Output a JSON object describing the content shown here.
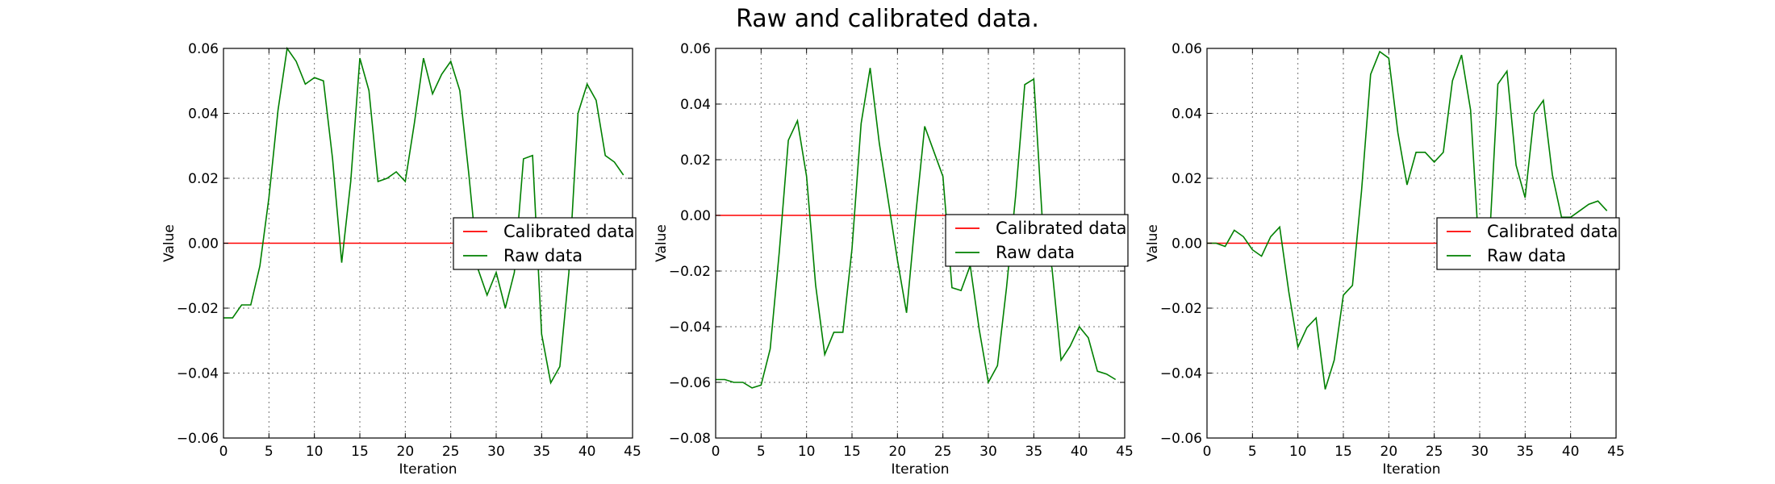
{
  "title": "Raw and calibrated data.",
  "colors": {
    "calibrated": "#ff0000",
    "raw": "#008000",
    "grid": "#000000"
  },
  "chart_data": [
    {
      "type": "line",
      "xlabel": "Iteration",
      "ylabel": "Value",
      "xlim": [
        0,
        45
      ],
      "ylim": [
        -0.06,
        0.06
      ],
      "xticks": [
        0,
        5,
        10,
        15,
        20,
        25,
        30,
        35,
        40,
        45
      ],
      "xtick_labels": [
        "0",
        "5",
        "10",
        "15",
        "20",
        "25",
        "30",
        "35",
        "40",
        "45"
      ],
      "yticks": [
        -0.06,
        -0.04,
        -0.02,
        0.0,
        0.02,
        0.04,
        0.06
      ],
      "ytick_labels": [
        "−0.06",
        "−0.04",
        "−0.02",
        "0.00",
        "0.02",
        "0.04",
        "0.06"
      ],
      "grid": true,
      "legend_position": "right",
      "x": [
        0,
        1,
        2,
        3,
        4,
        5,
        6,
        7,
        8,
        9,
        10,
        11,
        12,
        13,
        14,
        15,
        16,
        17,
        18,
        19,
        20,
        21,
        22,
        23,
        24,
        25,
        26,
        27,
        28,
        29,
        30,
        31,
        32,
        33,
        34,
        35,
        36,
        37,
        38,
        39,
        40,
        41,
        42,
        43,
        44
      ],
      "series": [
        {
          "name": "Calibrated data",
          "color": "#ff0000",
          "values": [
            0,
            0,
            0,
            0,
            0,
            0,
            0,
            0,
            0,
            0,
            0,
            0,
            0,
            0,
            0,
            0,
            0,
            0,
            0,
            0,
            0,
            0,
            0,
            0,
            0,
            0,
            0,
            0,
            0,
            0,
            0,
            0,
            0,
            0,
            0,
            0,
            0,
            0,
            0,
            0,
            0,
            0,
            0,
            0,
            0
          ]
        },
        {
          "name": "Raw data",
          "color": "#008000",
          "values": [
            -0.023,
            -0.023,
            -0.019,
            -0.019,
            -0.007,
            0.014,
            0.041,
            0.06,
            0.056,
            0.049,
            0.051,
            0.05,
            0.026,
            -0.006,
            0.019,
            0.057,
            0.047,
            0.019,
            0.02,
            0.022,
            0.019,
            0.037,
            0.057,
            0.046,
            0.052,
            0.056,
            0.047,
            0.021,
            -0.008,
            -0.016,
            -0.009,
            -0.02,
            -0.009,
            0.026,
            0.027,
            -0.028,
            -0.043,
            -0.038,
            -0.009,
            0.04,
            0.049,
            0.044,
            0.027,
            0.025,
            0.021
          ]
        }
      ]
    },
    {
      "type": "line",
      "xlabel": "Iteration",
      "ylabel": "Value",
      "xlim": [
        0,
        45
      ],
      "ylim": [
        -0.08,
        0.06
      ],
      "xticks": [
        0,
        5,
        10,
        15,
        20,
        25,
        30,
        35,
        40,
        45
      ],
      "xtick_labels": [
        "0",
        "5",
        "10",
        "15",
        "20",
        "25",
        "30",
        "35",
        "40",
        "45"
      ],
      "yticks": [
        -0.08,
        -0.06,
        -0.04,
        -0.02,
        0.0,
        0.02,
        0.04,
        0.06
      ],
      "ytick_labels": [
        "−0.08",
        "−0.06",
        "−0.04",
        "−0.02",
        "0.00",
        "0.02",
        "0.04",
        "0.06"
      ],
      "grid": true,
      "legend_position": "right",
      "x": [
        0,
        1,
        2,
        3,
        4,
        5,
        6,
        7,
        8,
        9,
        10,
        11,
        12,
        13,
        14,
        15,
        16,
        17,
        18,
        19,
        20,
        21,
        22,
        23,
        24,
        25,
        26,
        27,
        28,
        29,
        30,
        31,
        32,
        33,
        34,
        35,
        36,
        37,
        38,
        39,
        40,
        41,
        42,
        43,
        44
      ],
      "series": [
        {
          "name": "Calibrated data",
          "color": "#ff0000",
          "values": [
            0,
            0,
            0,
            0,
            0,
            0,
            0,
            0,
            0,
            0,
            0,
            0,
            0,
            0,
            0,
            0,
            0,
            0,
            0,
            0,
            0,
            0,
            0,
            0,
            0,
            0,
            0,
            0,
            0,
            0,
            0,
            0,
            0,
            0,
            0,
            0,
            0,
            0,
            0,
            0,
            0,
            0,
            0,
            0,
            0
          ]
        },
        {
          "name": "Raw data",
          "color": "#008000",
          "values": [
            -0.059,
            -0.059,
            -0.06,
            -0.06,
            -0.062,
            -0.061,
            -0.048,
            -0.013,
            0.027,
            0.034,
            0.014,
            -0.025,
            -0.05,
            -0.042,
            -0.042,
            -0.012,
            0.033,
            0.053,
            0.026,
            0.005,
            -0.016,
            -0.035,
            0.0,
            0.032,
            0.023,
            0.014,
            -0.026,
            -0.027,
            -0.018,
            -0.041,
            -0.06,
            -0.054,
            -0.026,
            0.007,
            0.047,
            0.049,
            -0.005,
            -0.019,
            -0.052,
            -0.047,
            -0.04,
            -0.044,
            -0.056,
            -0.057,
            -0.059
          ]
        }
      ]
    },
    {
      "type": "line",
      "xlabel": "Iteration",
      "ylabel": "Value",
      "xlim": [
        0,
        45
      ],
      "ylim": [
        -0.06,
        0.06
      ],
      "xticks": [
        0,
        5,
        10,
        15,
        20,
        25,
        30,
        35,
        40,
        45
      ],
      "xtick_labels": [
        "0",
        "5",
        "10",
        "15",
        "20",
        "25",
        "30",
        "35",
        "40",
        "45"
      ],
      "yticks": [
        -0.06,
        -0.04,
        -0.02,
        0.0,
        0.02,
        0.04,
        0.06
      ],
      "ytick_labels": [
        "−0.06",
        "−0.04",
        "−0.02",
        "0.00",
        "0.02",
        "0.04",
        "0.06"
      ],
      "grid": true,
      "legend_position": "right",
      "x": [
        0,
        1,
        2,
        3,
        4,
        5,
        6,
        7,
        8,
        9,
        10,
        11,
        12,
        13,
        14,
        15,
        16,
        17,
        18,
        19,
        20,
        21,
        22,
        23,
        24,
        25,
        26,
        27,
        28,
        29,
        30,
        31,
        32,
        33,
        34,
        35,
        36,
        37,
        38,
        39,
        40,
        41,
        42,
        43,
        44
      ],
      "series": [
        {
          "name": "Calibrated data",
          "color": "#ff0000",
          "values": [
            0,
            0,
            0,
            0,
            0,
            0,
            0,
            0,
            0,
            0,
            0,
            0,
            0,
            0,
            0,
            0,
            0,
            0,
            0,
            0,
            0,
            0,
            0,
            0,
            0,
            0,
            0,
            0,
            0,
            0,
            0,
            0,
            0,
            0,
            0,
            0,
            0,
            0,
            0,
            0,
            0,
            0,
            0,
            0,
            0
          ]
        },
        {
          "name": "Raw data",
          "color": "#008000",
          "values": [
            0.0,
            0.0,
            -0.001,
            0.004,
            0.002,
            -0.002,
            -0.004,
            0.002,
            0.005,
            -0.015,
            -0.032,
            -0.026,
            -0.023,
            -0.045,
            -0.036,
            -0.016,
            -0.013,
            0.016,
            0.052,
            0.059,
            0.057,
            0.034,
            0.018,
            0.028,
            0.028,
            0.025,
            0.028,
            0.05,
            0.058,
            0.041,
            -0.006,
            -0.003,
            0.049,
            0.053,
            0.024,
            0.014,
            0.04,
            0.044,
            0.021,
            0.008,
            0.008,
            0.01,
            0.012,
            0.013,
            0.01
          ]
        }
      ]
    }
  ]
}
